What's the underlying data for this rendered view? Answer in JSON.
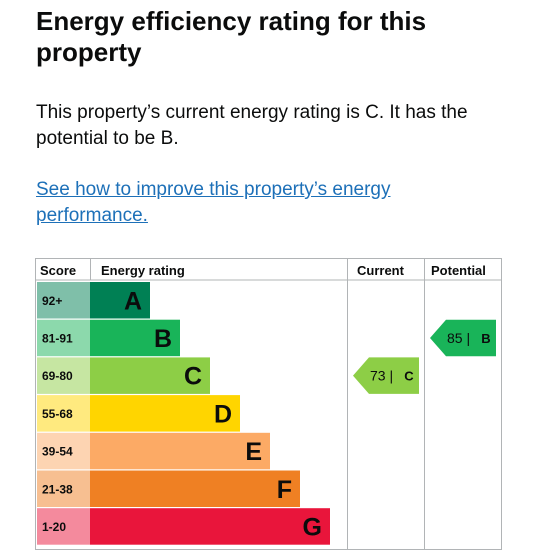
{
  "page": {
    "title": "Energy efficiency rating for this property",
    "summary": "This property’s current energy rating is C. It has the potential to be B.",
    "link_text": "See how to improve this property’s energy performance."
  },
  "chart": {
    "headers": {
      "score": "Score",
      "rating": "Energy rating",
      "current": "Current",
      "potential": "Potential"
    },
    "bands": [
      {
        "score": "92+",
        "letter": "A",
        "color": "#008054",
        "letter_color": "#0b0c0c"
      },
      {
        "score": "81-91",
        "letter": "B",
        "color": "#19b459",
        "letter_color": "#0b0c0c"
      },
      {
        "score": "69-80",
        "letter": "C",
        "color": "#8dce46",
        "letter_color": "#0b0c0c"
      },
      {
        "score": "55-68",
        "letter": "D",
        "color": "#ffd500",
        "letter_color": "#0b0c0c"
      },
      {
        "score": "39-54",
        "letter": "E",
        "color": "#fcaa65",
        "letter_color": "#0b0c0c"
      },
      {
        "score": "21-38",
        "letter": "F",
        "color": "#ef8023",
        "letter_color": "#0b0c0c"
      },
      {
        "score": "1-20",
        "letter": "G",
        "color": "#e9153b",
        "letter_color": "#0b0c0c"
      }
    ],
    "current": {
      "value": 73,
      "band": "C",
      "label": "73 |",
      "letter": "C",
      "color": "#8dce46"
    },
    "potential": {
      "value": 85,
      "band": "B",
      "label": "85 |",
      "letter": "B",
      "color": "#19b459"
    }
  }
}
